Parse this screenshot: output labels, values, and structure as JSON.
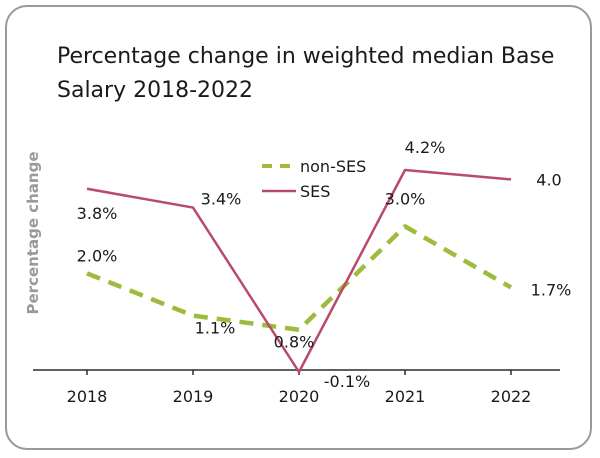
{
  "chart_data": {
    "type": "line",
    "title": "Percentage change in weighted median Base Salary 2018-2022",
    "ylabel": "Percentage change",
    "xlabel": "",
    "categories": [
      "2018",
      "2019",
      "2020",
      "2021",
      "2022"
    ],
    "ylim": [
      -0.1,
      4.2
    ],
    "grid": false,
    "legend_position": "top-center",
    "series": [
      {
        "name": "non-SES",
        "values": [
          2.0,
          1.1,
          0.8,
          3.0,
          1.7
        ],
        "labels": [
          "2.0%",
          "1.1%",
          "0.8%",
          "3.0%",
          "1.7%"
        ],
        "color": "#9dbb3d",
        "style": "dashed"
      },
      {
        "name": "SES",
        "values": [
          3.8,
          3.4,
          -0.1,
          4.2,
          4.0
        ],
        "labels": [
          "3.8%",
          "3.4%",
          "-0.1%",
          "4.2%",
          "4.0"
        ],
        "color": "#b94a6b",
        "style": "solid"
      }
    ]
  }
}
